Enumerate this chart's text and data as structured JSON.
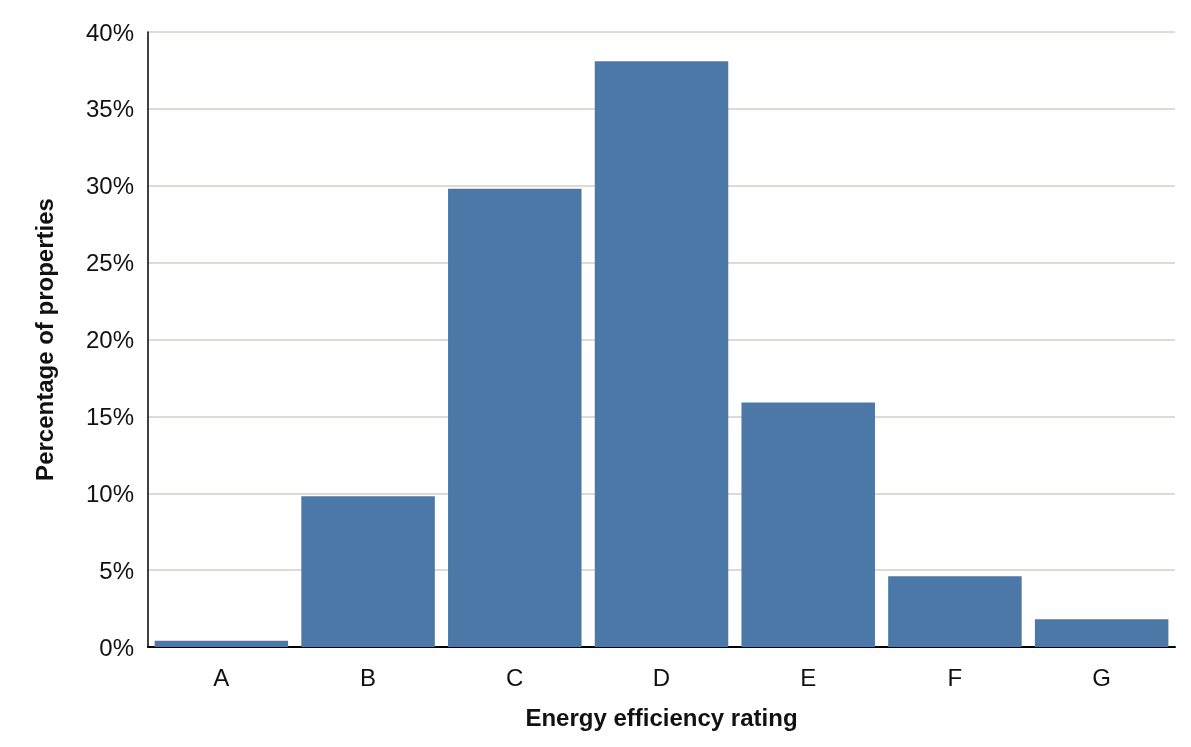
{
  "chart_data": {
    "type": "bar",
    "xlabel": "Energy efficiency rating",
    "ylabel": "Percentage of properties",
    "categories": [
      "A",
      "B",
      "C",
      "D",
      "E",
      "F",
      "G"
    ],
    "values": [
      0.4,
      9.8,
      29.8,
      38.1,
      15.9,
      4.6,
      1.8
    ],
    "color": "#4c78a8",
    "ylim": [
      0,
      40
    ],
    "yticks": [
      {
        "value": 0,
        "label": "0%"
      },
      {
        "value": 5,
        "label": "5%"
      },
      {
        "value": 10,
        "label": "10%"
      },
      {
        "value": 15,
        "label": "15%"
      },
      {
        "value": 20,
        "label": "20%"
      },
      {
        "value": 25,
        "label": "25%"
      },
      {
        "value": 30,
        "label": "30%"
      },
      {
        "value": 35,
        "label": "35%"
      },
      {
        "value": 40,
        "label": "40%"
      }
    ],
    "grid": "y"
  }
}
